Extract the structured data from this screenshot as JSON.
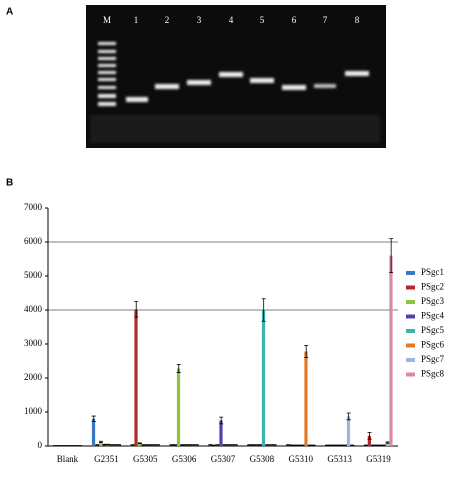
{
  "gel": {
    "label": "A",
    "lanes": [
      "M",
      "1",
      "2",
      "3",
      "4",
      "5",
      "6",
      "7",
      "8"
    ]
  },
  "chart_data": {
    "type": "bar",
    "label": "B",
    "categories": [
      "Blank",
      "G2351",
      "G5305",
      "G5306",
      "G5307",
      "G5308",
      "G5310",
      "G5313",
      "G5319"
    ],
    "series": [
      {
        "name": "PSgc1",
        "color": "#3a78c4",
        "values": [
          10,
          800,
          30,
          30,
          30,
          30,
          30,
          20,
          20
        ],
        "errors": [
          5,
          80,
          10,
          10,
          10,
          10,
          10,
          10,
          10
        ]
      },
      {
        "name": "PSgc2",
        "color": "#b3282d",
        "values": [
          10,
          30,
          4020,
          30,
          20,
          30,
          20,
          20,
          300
        ],
        "errors": [
          5,
          10,
          230,
          10,
          10,
          10,
          10,
          10,
          100
        ]
      },
      {
        "name": "PSgc3",
        "color": "#8cc43c",
        "values": [
          10,
          120,
          80,
          2280,
          30,
          30,
          20,
          20,
          20
        ],
        "errors": [
          5,
          20,
          10,
          120,
          10,
          10,
          10,
          10,
          10
        ]
      },
      {
        "name": "PSgc4",
        "color": "#5a3fa8",
        "values": [
          10,
          40,
          30,
          30,
          750,
          30,
          20,
          20,
          20
        ],
        "errors": [
          5,
          10,
          10,
          10,
          100,
          10,
          10,
          10,
          10
        ]
      },
      {
        "name": "PSgc5",
        "color": "#3bb3b3",
        "values": [
          10,
          40,
          30,
          30,
          30,
          4000,
          20,
          20,
          20
        ],
        "errors": [
          5,
          10,
          10,
          10,
          10,
          330,
          10,
          10,
          10
        ]
      },
      {
        "name": "PSgc6",
        "color": "#e07a2a",
        "values": [
          10,
          30,
          30,
          30,
          30,
          30,
          2780,
          20,
          20
        ],
        "errors": [
          5,
          10,
          10,
          10,
          10,
          10,
          180,
          10,
          10
        ]
      },
      {
        "name": "PSgc7",
        "color": "#98b8e0",
        "values": [
          10,
          30,
          30,
          30,
          30,
          30,
          20,
          870,
          100
        ],
        "errors": [
          5,
          10,
          10,
          10,
          10,
          10,
          10,
          100,
          20
        ]
      },
      {
        "name": "PSgc8",
        "color": "#d98aa4",
        "values": [
          10,
          30,
          30,
          30,
          30,
          30,
          20,
          20,
          5600
        ],
        "errors": [
          5,
          10,
          10,
          10,
          10,
          10,
          10,
          10,
          500
        ]
      }
    ],
    "ylim": [
      0,
      7000
    ],
    "yticks": [
      0,
      1000,
      2000,
      3000,
      4000,
      5000,
      6000,
      7000
    ],
    "gridlines": [
      4000,
      6000
    ]
  }
}
